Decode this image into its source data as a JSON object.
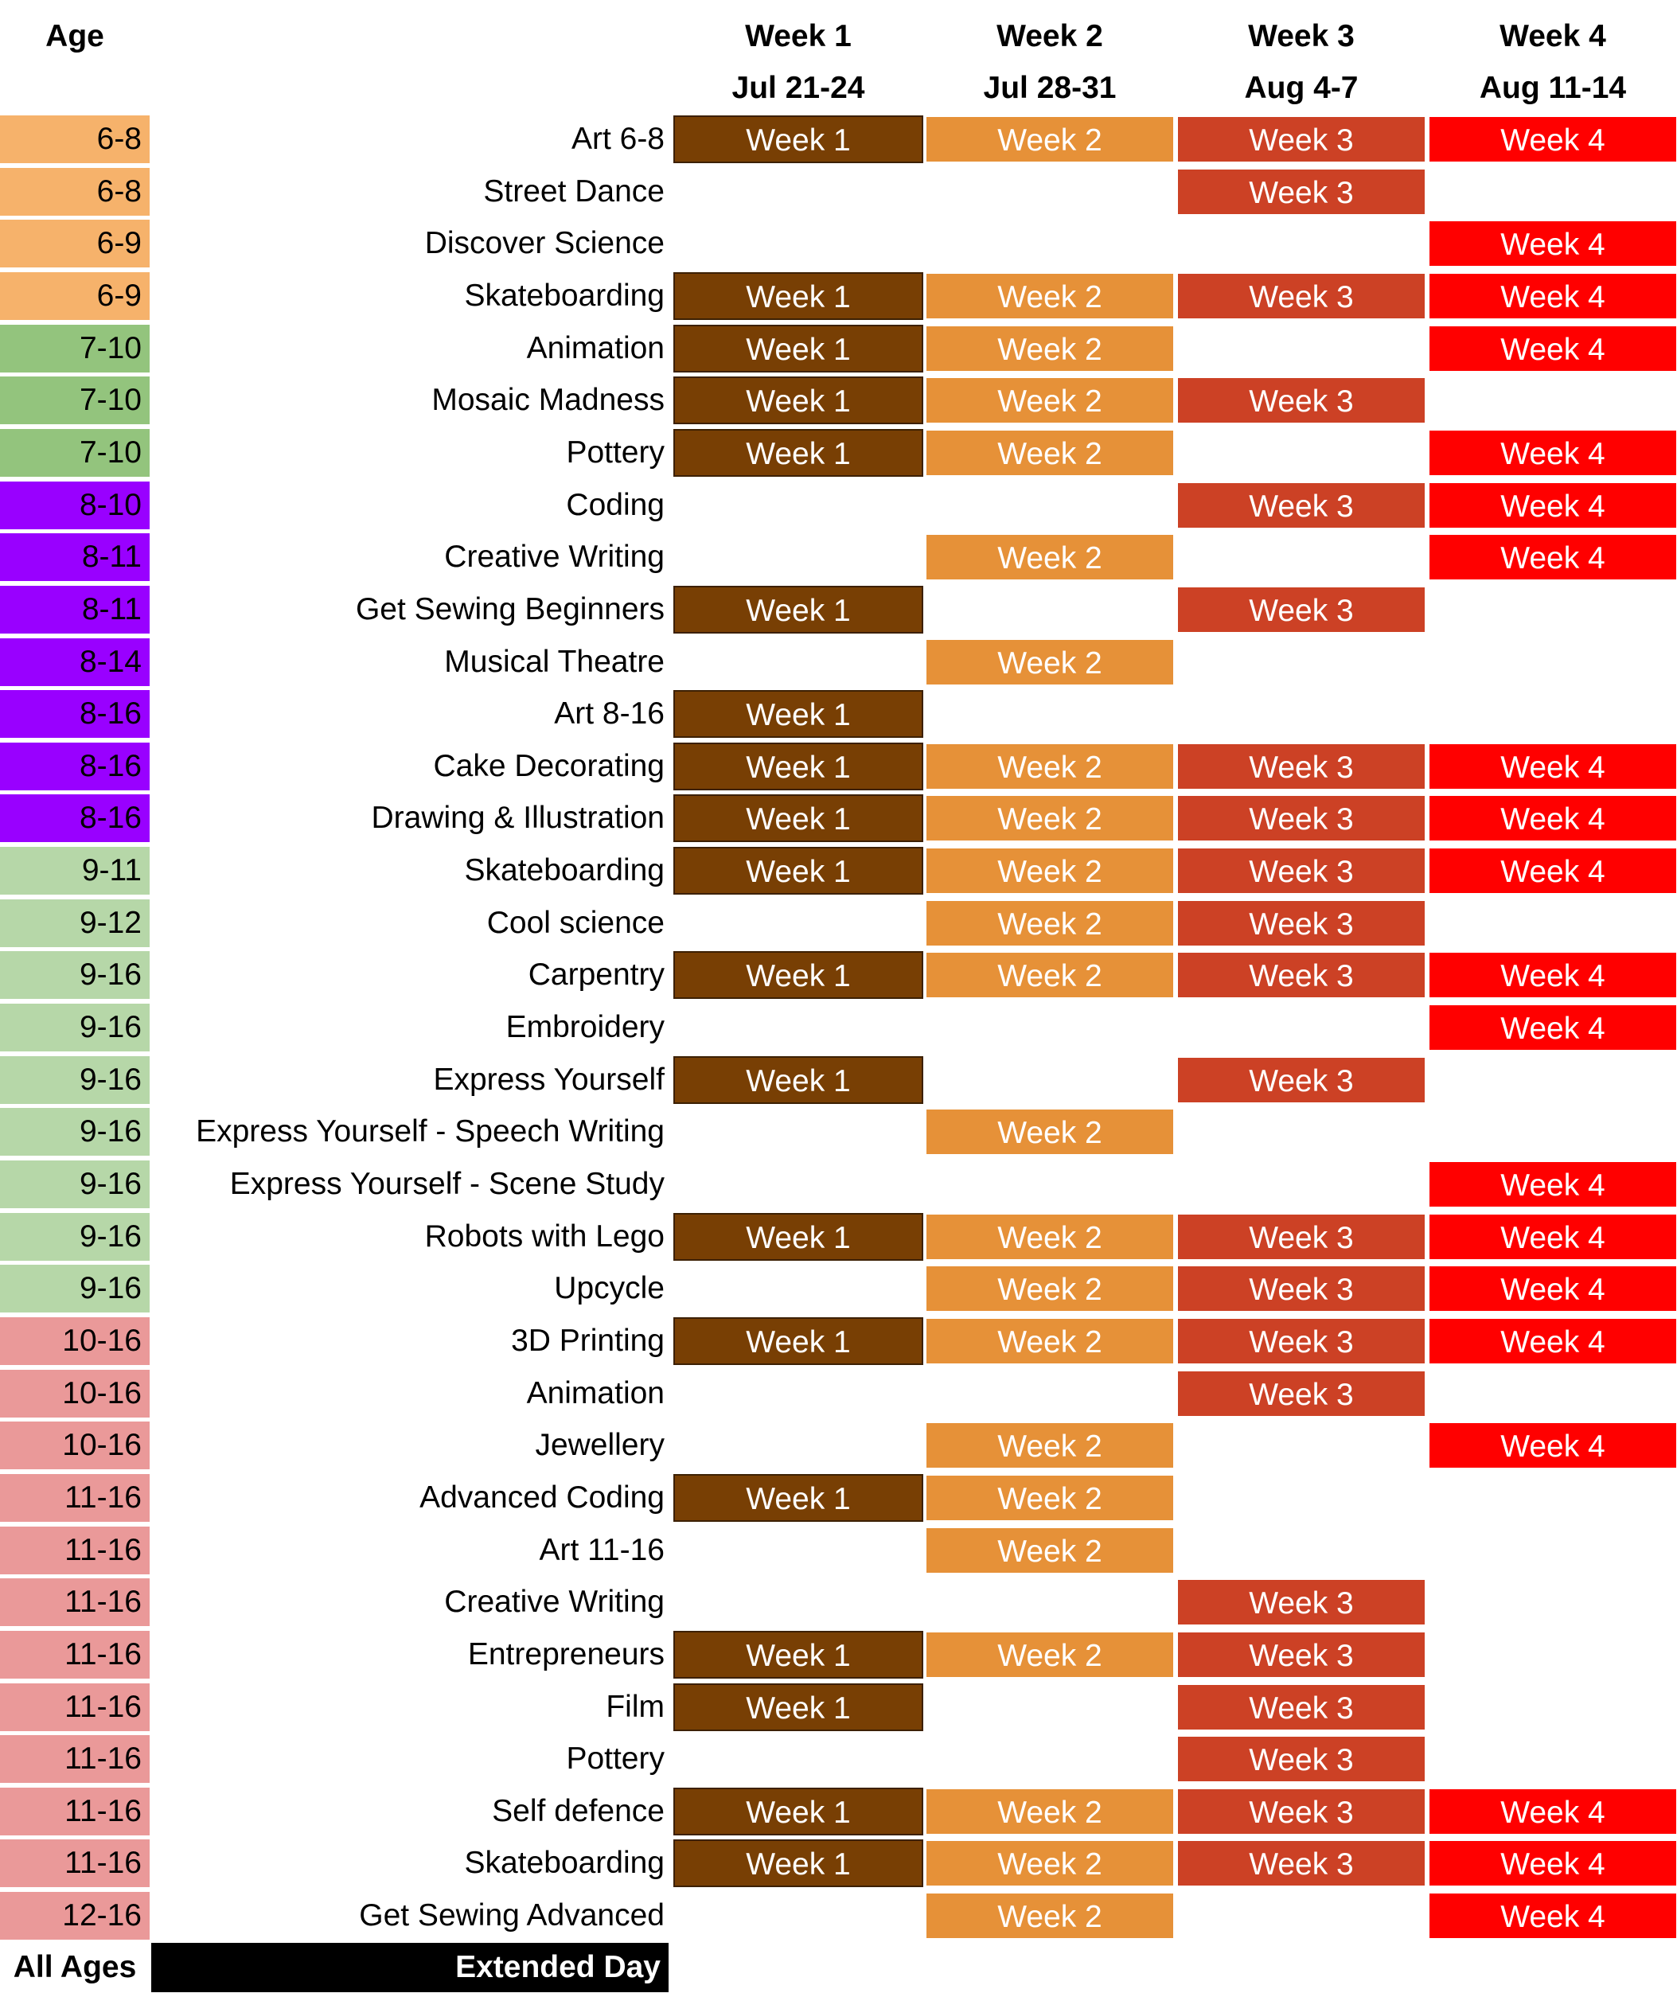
{
  "header": {
    "age_label": "Age",
    "weeks": [
      {
        "label": "Week 1",
        "dates": "Jul 21-24"
      },
      {
        "label": "Week 2",
        "dates": "Jul 28-31"
      },
      {
        "label": "Week 3",
        "dates": "Aug 4-7"
      },
      {
        "label": "Week 4",
        "dates": "Aug 11-14"
      }
    ]
  },
  "cell_labels": [
    "Week 1",
    "Week 2",
    "Week 3",
    "Week 4"
  ],
  "age_colors": {
    "6-8": "#f6b26b",
    "6-9": "#f6b26b",
    "7-10": "#93c47d",
    "8-10": "#9900ff",
    "8-11": "#9900ff",
    "8-14": "#9900ff",
    "8-16": "#9900ff",
    "9-11": "#b6d7a8",
    "9-12": "#b6d7a8",
    "9-16": "#b6d7a8",
    "10-16": "#ea9999",
    "11-16": "#ea9999",
    "12-16": "#ea9999"
  },
  "rows": [
    {
      "age": "6-8",
      "name": "Art 6-8",
      "weeks": [
        1,
        1,
        1,
        1
      ]
    },
    {
      "age": "6-8",
      "name": "Street Dance",
      "weeks": [
        0,
        0,
        1,
        0
      ]
    },
    {
      "age": "6-9",
      "name": "Discover Science",
      "weeks": [
        0,
        0,
        0,
        1
      ]
    },
    {
      "age": "6-9",
      "name": "Skateboarding",
      "weeks": [
        1,
        1,
        1,
        1
      ]
    },
    {
      "age": "7-10",
      "name": "Animation",
      "weeks": [
        1,
        1,
        0,
        1
      ]
    },
    {
      "age": "7-10",
      "name": "Mosaic Madness",
      "weeks": [
        1,
        1,
        1,
        0
      ]
    },
    {
      "age": "7-10",
      "name": "Pottery",
      "weeks": [
        1,
        1,
        0,
        1
      ]
    },
    {
      "age": "8-10",
      "name": "Coding",
      "weeks": [
        0,
        0,
        1,
        1
      ]
    },
    {
      "age": "8-11",
      "name": "Creative Writing",
      "weeks": [
        0,
        1,
        0,
        1
      ]
    },
    {
      "age": "8-11",
      "name": "Get Sewing Beginners",
      "weeks": [
        1,
        0,
        1,
        0
      ]
    },
    {
      "age": "8-14",
      "name": "Musical Theatre",
      "weeks": [
        0,
        1,
        0,
        0
      ]
    },
    {
      "age": "8-16",
      "name": "Art 8-16",
      "weeks": [
        1,
        0,
        0,
        0
      ]
    },
    {
      "age": "8-16",
      "name": "Cake Decorating",
      "weeks": [
        1,
        1,
        1,
        1
      ]
    },
    {
      "age": "8-16",
      "name": "Drawing & Illustration",
      "weeks": [
        1,
        1,
        1,
        1
      ]
    },
    {
      "age": "9-11",
      "name": "Skateboarding",
      "weeks": [
        1,
        1,
        1,
        1
      ]
    },
    {
      "age": "9-12",
      "name": "Cool science",
      "weeks": [
        0,
        1,
        1,
        0
      ]
    },
    {
      "age": "9-16",
      "name": "Carpentry",
      "weeks": [
        1,
        1,
        1,
        1
      ]
    },
    {
      "age": "9-16",
      "name": "Embroidery",
      "weeks": [
        0,
        0,
        0,
        1
      ]
    },
    {
      "age": "9-16",
      "name": "Express Yourself",
      "weeks": [
        1,
        0,
        1,
        0
      ]
    },
    {
      "age": "9-16",
      "name": "Express Yourself - Speech Writing",
      "weeks": [
        0,
        1,
        0,
        0
      ]
    },
    {
      "age": "9-16",
      "name": "Express Yourself - Scene Study",
      "weeks": [
        0,
        0,
        0,
        1
      ]
    },
    {
      "age": "9-16",
      "name": "Robots with Lego",
      "weeks": [
        1,
        1,
        1,
        1
      ]
    },
    {
      "age": "9-16",
      "name": "Upcycle",
      "weeks": [
        0,
        1,
        1,
        1
      ]
    },
    {
      "age": "10-16",
      "name": "3D Printing",
      "weeks": [
        1,
        1,
        1,
        1
      ]
    },
    {
      "age": "10-16",
      "name": "Animation",
      "weeks": [
        0,
        0,
        1,
        0
      ]
    },
    {
      "age": "10-16",
      "name": "Jewellery",
      "weeks": [
        0,
        1,
        0,
        1
      ]
    },
    {
      "age": "11-16",
      "name": "Advanced Coding",
      "weeks": [
        1,
        1,
        0,
        0
      ]
    },
    {
      "age": "11-16",
      "name": "Art 11-16",
      "weeks": [
        0,
        1,
        0,
        0
      ]
    },
    {
      "age": "11-16",
      "name": "Creative Writing",
      "weeks": [
        0,
        0,
        1,
        0
      ]
    },
    {
      "age": "11-16",
      "name": "Entrepreneurs",
      "weeks": [
        1,
        1,
        1,
        0
      ]
    },
    {
      "age": "11-16",
      "name": "Film",
      "weeks": [
        1,
        0,
        1,
        0
      ]
    },
    {
      "age": "11-16",
      "name": "Pottery",
      "weeks": [
        0,
        0,
        1,
        0
      ]
    },
    {
      "age": "11-16",
      "name": "Self defence",
      "weeks": [
        1,
        1,
        1,
        1
      ]
    },
    {
      "age": "11-16",
      "name": "Skateboarding",
      "weeks": [
        1,
        1,
        1,
        1
      ]
    },
    {
      "age": "12-16",
      "name": "Get Sewing Advanced",
      "weeks": [
        0,
        1,
        0,
        1
      ]
    }
  ],
  "footer": {
    "age": "All Ages",
    "label": "Extended Day"
  }
}
